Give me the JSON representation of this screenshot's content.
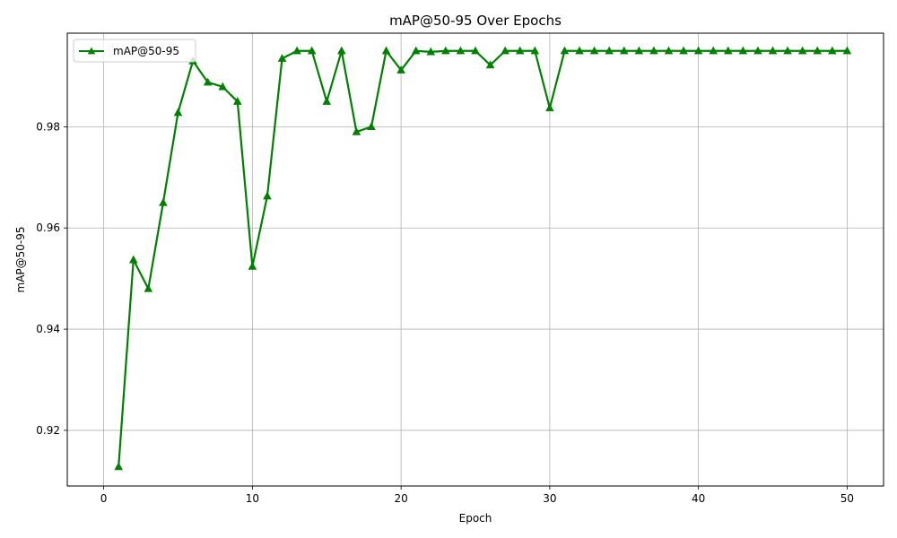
{
  "chart_data": {
    "type": "line",
    "title": "mAP@50-95 Over Epochs",
    "xlabel": "Epoch",
    "ylabel": "mAP@50-95",
    "xlim": [
      -2.45,
      52.45
    ],
    "ylim": [
      0.909,
      0.9985
    ],
    "xticks": [
      0,
      10,
      20,
      30,
      40,
      50
    ],
    "yticks": [
      0.92,
      0.94,
      0.96,
      0.98
    ],
    "grid": true,
    "legend_position": "top-left",
    "x": [
      1,
      2,
      3,
      4,
      5,
      6,
      7,
      8,
      9,
      10,
      11,
      12,
      13,
      14,
      15,
      16,
      17,
      18,
      19,
      20,
      21,
      22,
      23,
      24,
      25,
      26,
      27,
      28,
      29,
      30,
      31,
      32,
      33,
      34,
      35,
      36,
      37,
      38,
      39,
      40,
      41,
      42,
      43,
      44,
      45,
      46,
      47,
      48,
      49,
      50
    ],
    "series": [
      {
        "name": "mAP@50-95",
        "color": "#008000",
        "marker": "triangle-up",
        "values": [
          0.9128,
          0.9537,
          0.948,
          0.965,
          0.9828,
          0.993,
          0.9888,
          0.9879,
          0.985,
          0.9524,
          0.9663,
          0.9935,
          0.995,
          0.995,
          0.985,
          0.995,
          0.979,
          0.98,
          0.995,
          0.9912,
          0.995,
          0.9948,
          0.995,
          0.995,
          0.995,
          0.9922,
          0.995,
          0.995,
          0.995,
          0.9837,
          0.995,
          0.995,
          0.995,
          0.995,
          0.995,
          0.995,
          0.995,
          0.995,
          0.995,
          0.995,
          0.995,
          0.995,
          0.995,
          0.995,
          0.995,
          0.995,
          0.995,
          0.995,
          0.995,
          0.995
        ]
      }
    ]
  }
}
